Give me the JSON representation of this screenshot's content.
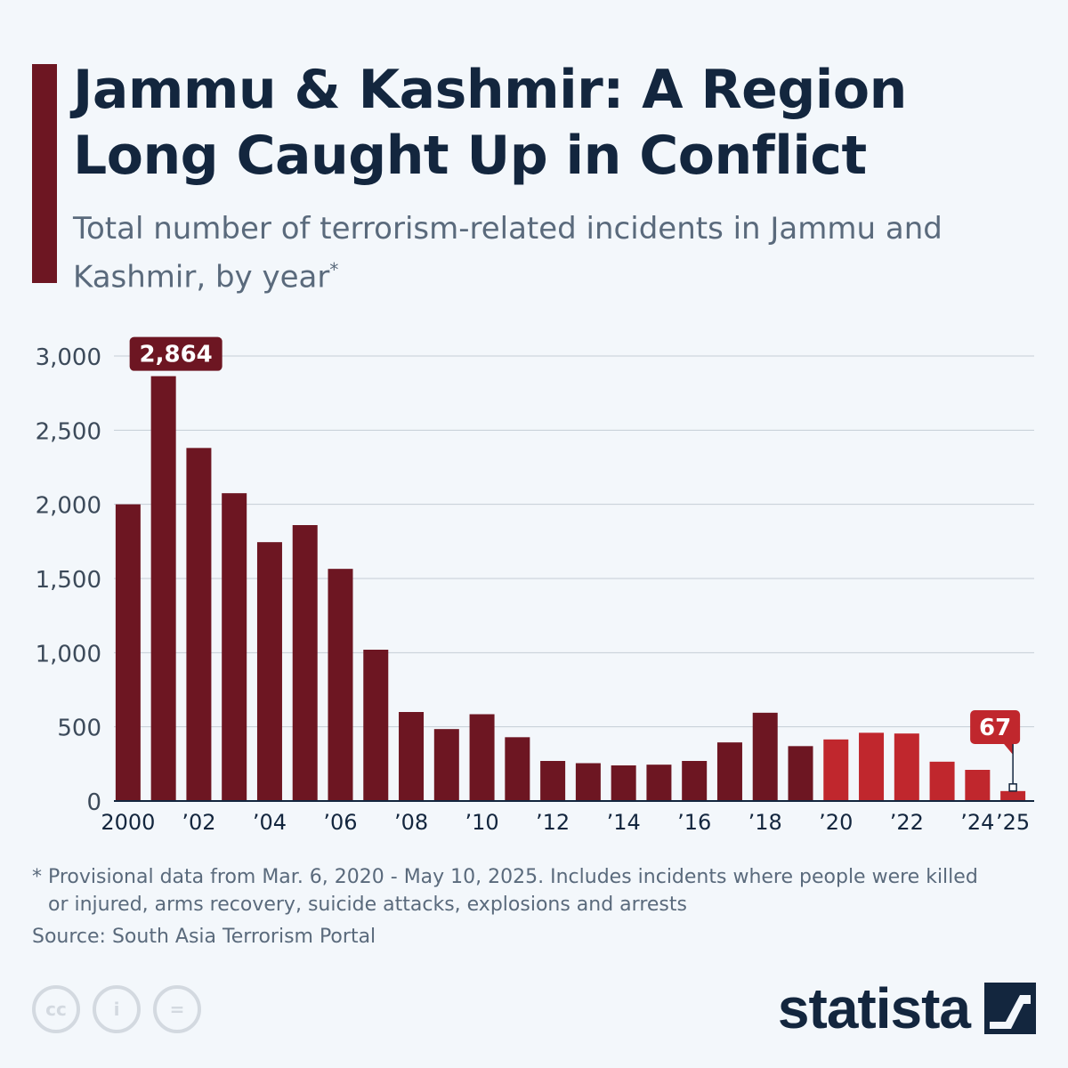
{
  "header": {
    "title": "Jammu & Kashmir: A Region Long Caught Up in Conflict",
    "subtitle": "Total number of terrorism-related incidents in Jammu and Kashmir, by year",
    "subtitle_marker": "*"
  },
  "chart_data": {
    "type": "bar",
    "title": "Jammu & Kashmir: A Region Long Caught Up in Conflict",
    "subtitle": "Total number of terrorism-related incidents in Jammu and Kashmir, by year*",
    "categories": [
      "2000",
      "2001",
      "2002",
      "2003",
      "2004",
      "2005",
      "2006",
      "2007",
      "2008",
      "2009",
      "2010",
      "2011",
      "2012",
      "2013",
      "2014",
      "2015",
      "2016",
      "2017",
      "2018",
      "2019",
      "2020",
      "2021",
      "2022",
      "2023",
      "2024",
      "2025"
    ],
    "x_tick_labels": [
      "2000",
      "",
      "’02",
      "",
      "’04",
      "",
      "’06",
      "",
      "’08",
      "",
      "’10",
      "",
      "’12",
      "",
      "’14",
      "",
      "’16",
      "",
      "’18",
      "",
      "’20",
      "",
      "’22",
      "",
      "’24",
      "’25"
    ],
    "values": [
      2000,
      2864,
      2380,
      2075,
      1745,
      1860,
      1565,
      1020,
      600,
      485,
      585,
      430,
      270,
      255,
      240,
      245,
      270,
      395,
      595,
      370,
      415,
      460,
      455,
      265,
      210,
      67
    ],
    "highlight_from_index": 20,
    "ylim": [
      0,
      3000
    ],
    "yticks": [
      0,
      500,
      1000,
      1500,
      2000,
      2500,
      3000
    ],
    "ytick_labels": [
      "0",
      "500",
      "1,000",
      "1,500",
      "2,000",
      "2,500",
      "3,000"
    ],
    "annotations": [
      {
        "index": 1,
        "label": "2,864"
      },
      {
        "index": 25,
        "label": "67"
      }
    ],
    "grid": true,
    "colors": {
      "primary": "#6d1622",
      "highlight": "#c0272d",
      "grid": "#c5cdd6",
      "axis": "#13263e"
    }
  },
  "footer": {
    "note_line1": "* Provisional data from Mar. 6, 2020 - May 10, 2025. Includes incidents where people were killed",
    "note_line2": "or injured, arms recovery, suicide attacks, explosions and arrests",
    "source": "Source: South Asia Terrorism Portal",
    "brand": "statista",
    "license_icons": [
      "cc-icon",
      "attribution-icon",
      "no-derivatives-icon"
    ],
    "license_glyphs": [
      "cc",
      "i",
      "="
    ]
  }
}
